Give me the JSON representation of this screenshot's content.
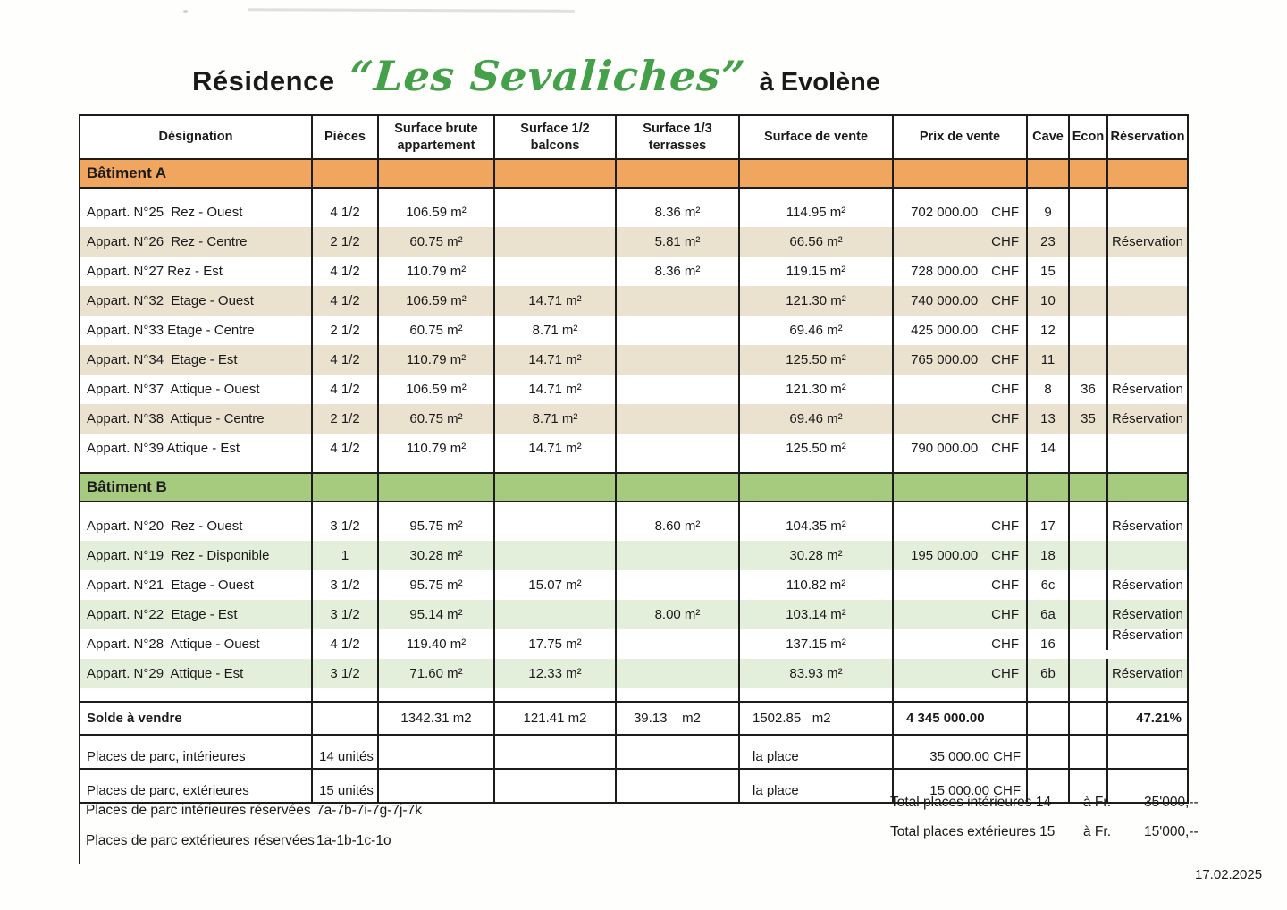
{
  "title": {
    "prefix": "Résidence",
    "name": "“Les Sevaliches”",
    "suffix": "à Evolène"
  },
  "scan_date": "17.02.2025",
  "colors": {
    "title_green": "#44a049",
    "band_a": "#f1a65f",
    "band_b": "#a6ca7e",
    "stripe_a": "#ebe1cf",
    "stripe_b": "#e4efdb",
    "grid_line": "#1c1c1c"
  },
  "table": {
    "currency_label": "CHF",
    "headers": [
      "Désignation",
      "Pièces",
      "Surface brute\nappartement",
      "Surface  1/2 balcons",
      "Surface  1/3\nterrasses",
      "Surface de vente",
      "Prix de vente",
      "Cave",
      "Econ",
      "Réservation"
    ],
    "sections": [
      {
        "label": "Bâtiment A",
        "rows": [
          {
            "designation": "Appart. N°25  Rez - Ouest",
            "pieces": "4 1/2",
            "brute": "106.59 m²",
            "balcons": "",
            "terrasses": "8.36 m²",
            "vente": "114.95 m²",
            "prix": "702 000.00",
            "cave": "9",
            "econ": "",
            "reservation": ""
          },
          {
            "designation": "Appart. N°26  Rez - Centre",
            "pieces": "2 1/2",
            "brute": "60.75 m²",
            "balcons": "",
            "terrasses": "5.81 m²",
            "vente": "66.56 m²",
            "prix": "",
            "cave": "23",
            "econ": "",
            "reservation": "Réservation"
          },
          {
            "designation": "Appart. N°27 Rez - Est",
            "pieces": "4 1/2",
            "brute": "110.79 m²",
            "balcons": "",
            "terrasses": "8.36 m²",
            "vente": "119.15 m²",
            "prix": "728 000.00",
            "cave": "15",
            "econ": "",
            "reservation": ""
          },
          {
            "designation": "Appart. N°32  Etage - Ouest",
            "pieces": "4 1/2",
            "brute": "106.59 m²",
            "balcons": "14.71 m²",
            "terrasses": "",
            "vente": "121.30 m²",
            "prix": "740 000.00",
            "cave": "10",
            "econ": "",
            "reservation": ""
          },
          {
            "designation": "Appart. N°33 Etage - Centre",
            "pieces": "2 1/2",
            "brute": "60.75 m²",
            "balcons": "8.71 m²",
            "terrasses": "",
            "vente": "69.46 m²",
            "prix": "425 000.00",
            "cave": "12",
            "econ": "",
            "reservation": ""
          },
          {
            "designation": "Appart. N°34  Etage - Est",
            "pieces": "4 1/2",
            "brute": "110.79 m²",
            "balcons": "14.71 m²",
            "terrasses": "",
            "vente": "125.50 m²",
            "prix": "765 000.00",
            "cave": "11",
            "econ": "",
            "reservation": ""
          },
          {
            "designation": "Appart. N°37  Attique - Ouest",
            "pieces": "4 1/2",
            "brute": "106.59 m²",
            "balcons": "14.71 m²",
            "terrasses": "",
            "vente": "121.30 m²",
            "prix": "",
            "cave": "8",
            "econ": "36",
            "reservation": "Réservation"
          },
          {
            "designation": "Appart. N°38  Attique - Centre",
            "pieces": "2 1/2",
            "brute": "60.75 m²",
            "balcons": "8.71 m²",
            "terrasses": "",
            "vente": "69.46 m²",
            "prix": "",
            "cave": "13",
            "econ": "35",
            "reservation": "Réservation"
          },
          {
            "designation": "Appart. N°39 Attique - Est",
            "pieces": "4 1/2",
            "brute": "110.79 m²",
            "balcons": "14.71 m²",
            "terrasses": "",
            "vente": "125.50 m²",
            "prix": "790 000.00",
            "cave": "14",
            "econ": "",
            "reservation": ""
          }
        ]
      },
      {
        "label": "Bâtiment B",
        "rows": [
          {
            "designation": "Appart. N°20  Rez - Ouest",
            "pieces": "3 1/2",
            "brute": "95.75 m²",
            "balcons": "",
            "terrasses": "8.60 m²",
            "vente": "104.35 m²",
            "prix": "",
            "cave": "17",
            "econ": "",
            "reservation": "Réservation"
          },
          {
            "designation": "Appart. N°19  Rez - Disponible",
            "pieces": "1",
            "brute": "30.28 m²",
            "balcons": "",
            "terrasses": "",
            "vente": "30.28 m²",
            "prix": "195 000.00",
            "cave": "18",
            "econ": "",
            "reservation": ""
          },
          {
            "designation": "Appart. N°21  Etage - Ouest",
            "pieces": "3 1/2",
            "brute": "95.75 m²",
            "balcons": "15.07 m²",
            "terrasses": "",
            "vente": "110.82 m²",
            "prix": "",
            "cave": "6c",
            "econ": "",
            "reservation": "Réservation"
          },
          {
            "designation": "Appart. N°22  Etage - Est",
            "pieces": "3 1/2",
            "brute": "95.14 m²",
            "balcons": "",
            "terrasses": "8.00 m²",
            "vente": "103.14 m²",
            "prix": "",
            "cave": "6a",
            "econ": "",
            "reservation": "Réservation"
          },
          {
            "designation": "Appart. N°28  Attique - Ouest",
            "pieces": "4 1/2",
            "brute": "119.40 m²",
            "balcons": "17.75 m²",
            "terrasses": "",
            "vente": "137.15 m²",
            "prix": "",
            "cave": "16",
            "econ": "",
            "reservation": "Réservation",
            "res_up": true
          },
          {
            "designation": "Appart. N°29  Attique - Est",
            "pieces": "3 1/2",
            "brute": "71.60 m²",
            "balcons": "12.33 m²",
            "terrasses": "",
            "vente": "83.93 m²",
            "prix": "",
            "cave": "6b",
            "econ": "",
            "reservation": "Réservation"
          }
        ]
      }
    ],
    "solde": {
      "label": "Solde à vendre",
      "brute": "1342.31 m2",
      "balcons": "121.41 m2",
      "terrasses": "39.13    m2",
      "vente": "1502.85   m2",
      "prix": "4 345 000.00",
      "percent": "47.21%"
    },
    "parking": [
      {
        "label": "Places de parc, intérieures",
        "unites": "14 unités",
        "unit_label": "la place",
        "prix": "35 000.00 CHF"
      },
      {
        "label": "Places de parc, extérieures",
        "unites": "15 unités",
        "unit_label": "la place",
        "prix": "15 000.00 CHF"
      }
    ]
  },
  "footer": {
    "left": [
      {
        "label": "Places de parc intérieures réservées",
        "value": "7a-7b-7i-7g-7j-7k"
      },
      {
        "label": "Places de parc extérieures réservées",
        "value": "1a-1b-1c-1o"
      }
    ],
    "right": [
      {
        "label": "Total places intérieures 14",
        "at": "à Fr.",
        "value": "35'000,--"
      },
      {
        "label": "Total places extérieures 15",
        "at": "à Fr.",
        "value": "15'000,--"
      }
    ]
  }
}
